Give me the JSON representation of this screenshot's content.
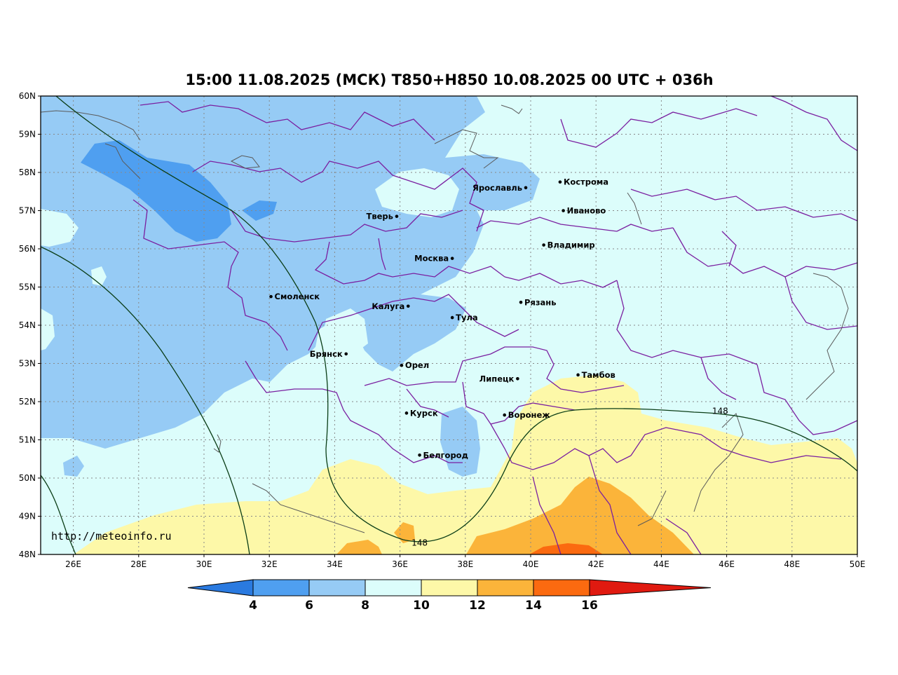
{
  "title": "15:00 11.08.2025 (МСК) T850+H850 10.08.2025 00 UTC + 036h",
  "watermark": "http://meteoinfo.ru",
  "map": {
    "lon_range": [
      25,
      50
    ],
    "lat_range": [
      48,
      60
    ],
    "lon_ticks": [
      {
        "lon": 26,
        "label": "26E"
      },
      {
        "lon": 28,
        "label": "28E"
      },
      {
        "lon": 30,
        "label": "30E"
      },
      {
        "lon": 32,
        "label": "32E"
      },
      {
        "lon": 34,
        "label": "34E"
      },
      {
        "lon": 36,
        "label": "36E"
      },
      {
        "lon": 38,
        "label": "38E"
      },
      {
        "lon": 40,
        "label": "40E"
      },
      {
        "lon": 42,
        "label": "42E"
      },
      {
        "lon": 44,
        "label": "44E"
      },
      {
        "lon": 46,
        "label": "46E"
      },
      {
        "lon": 48,
        "label": "48E"
      },
      {
        "lon": 50,
        "label": "50E"
      }
    ],
    "lat_ticks": [
      {
        "lat": 60,
        "label": "60N"
      },
      {
        "lat": 59,
        "label": "59N"
      },
      {
        "lat": 58,
        "label": "58N"
      },
      {
        "lat": 57,
        "label": "57N"
      },
      {
        "lat": 56,
        "label": "56N"
      },
      {
        "lat": 55,
        "label": "55N"
      },
      {
        "lat": 54,
        "label": "54N"
      },
      {
        "lat": 53,
        "label": "53N"
      },
      {
        "lat": 52,
        "label": "52N"
      },
      {
        "lat": 51,
        "label": "51N"
      },
      {
        "lat": 50,
        "label": "50N"
      },
      {
        "lat": 49,
        "label": "49N"
      },
      {
        "lat": 48,
        "label": "48N"
      }
    ],
    "cities": [
      {
        "name": "Кострома",
        "lon": 40.9,
        "lat": 57.75
      },
      {
        "name": "Ярославль",
        "lon": 39.85,
        "lat": 57.6
      },
      {
        "name": "Иваново",
        "lon": 41.0,
        "lat": 57.0
      },
      {
        "name": "Тверь",
        "lon": 35.9,
        "lat": 56.85
      },
      {
        "name": "Владимир",
        "lon": 40.4,
        "lat": 56.1
      },
      {
        "name": "Москва",
        "lon": 37.6,
        "lat": 55.75
      },
      {
        "name": "Смоленск",
        "lon": 32.05,
        "lat": 54.75
      },
      {
        "name": "Рязань",
        "lon": 39.7,
        "lat": 54.6
      },
      {
        "name": "Калуга",
        "lon": 36.25,
        "lat": 54.5
      },
      {
        "name": "Тула",
        "lon": 37.6,
        "lat": 54.2
      },
      {
        "name": "Брянск",
        "lon": 34.35,
        "lat": 53.25
      },
      {
        "name": "Орел",
        "lon": 36.05,
        "lat": 52.95
      },
      {
        "name": "Липецк",
        "lon": 39.6,
        "lat": 52.6
      },
      {
        "name": "Тамбов",
        "lon": 41.45,
        "lat": 52.7
      },
      {
        "name": "Курск",
        "lon": 36.2,
        "lat": 51.7
      },
      {
        "name": "Воронеж",
        "lon": 39.2,
        "lat": 51.65
      },
      {
        "name": "Белгород",
        "lon": 36.6,
        "lat": 50.6
      }
    ],
    "isoline_labels": [
      {
        "text": "148",
        "lon": 45.8,
        "lat": 51.75
      },
      {
        "text": "148",
        "lon": 36.6,
        "lat": 48.3
      }
    ]
  },
  "colorbar": {
    "labels": [
      "4",
      "6",
      "8",
      "10",
      "12",
      "14",
      "16"
    ],
    "colors": [
      "#2a7ae0",
      "#4f9ff0",
      "#96cbf5",
      "#dcfdfb",
      "#fdf8a8",
      "#fbb43a",
      "#fb6a10",
      "#e01a10"
    ]
  },
  "colors": {
    "band_4_6": "#4f9ff0",
    "band_6_8": "#96cbf5",
    "band_8_10": "#dcfdfb",
    "band_10_12": "#fdf8a8",
    "band_12_14": "#fbb43a",
    "band_14_16": "#fb6a10",
    "region_border": "#7a1fa0",
    "coast": "#555555",
    "isoline": "#0a3d16"
  }
}
